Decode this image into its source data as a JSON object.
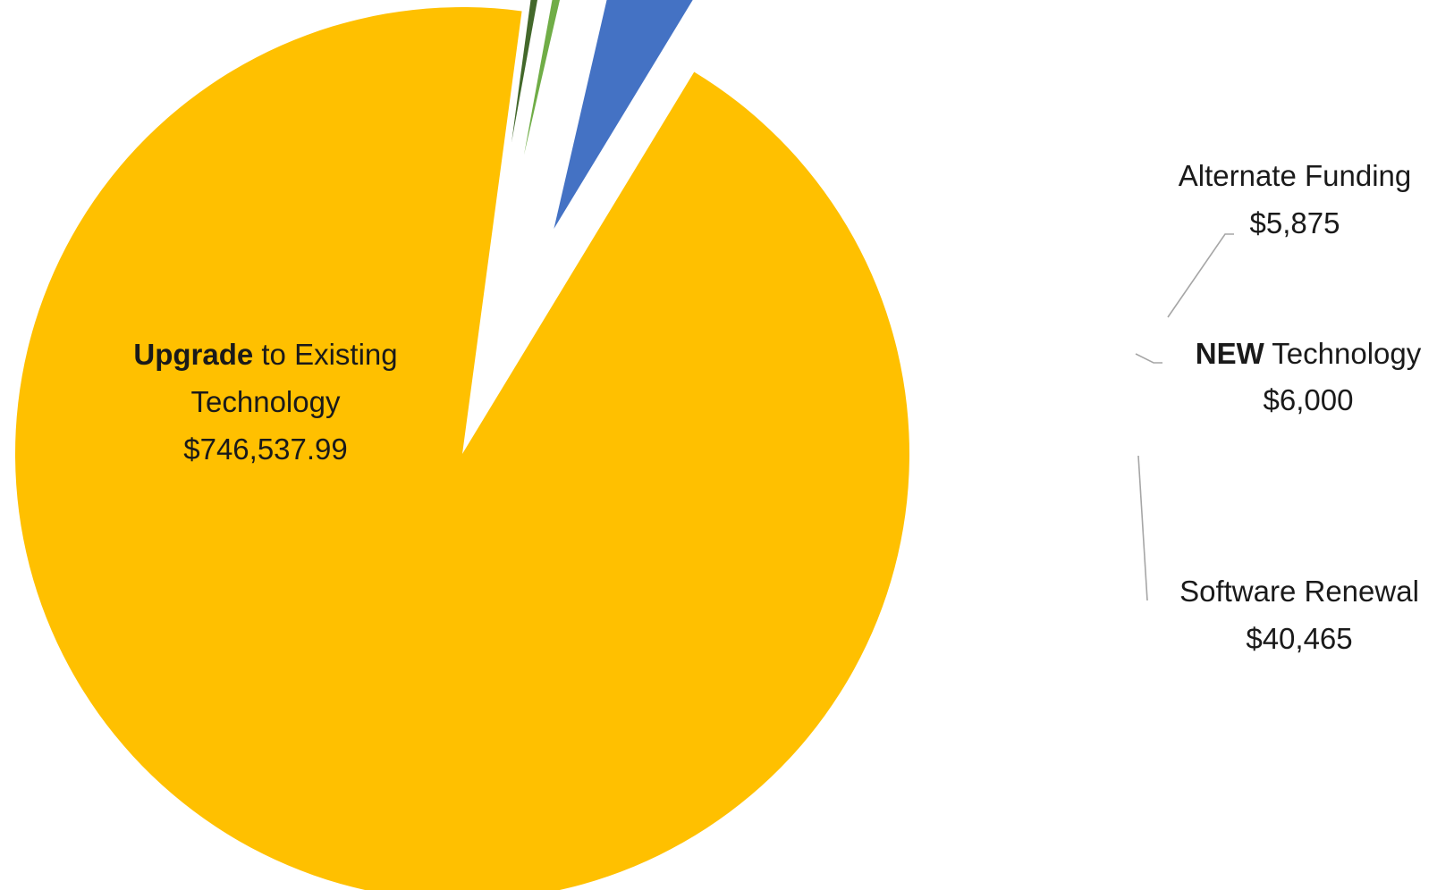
{
  "chart_data": {
    "type": "pie",
    "slices": [
      {
        "key": "software",
        "name": "Software Renewal",
        "value": 40465,
        "value_label": "$40,465",
        "color": "#4472C4"
      },
      {
        "key": "upgrade",
        "name_bold": "Upgrade",
        "name_rest": " to Existing",
        "name_line2": "Technology",
        "value": 746537.99,
        "value_label": "$746,537.99",
        "color": "#FFC000"
      },
      {
        "key": "alternate",
        "name": "Alternate Funding",
        "value": 5875,
        "value_label": "$5,875",
        "color": "#43682B"
      },
      {
        "key": "new",
        "name_bold": "NEW",
        "name_rest": " Technology",
        "value": 6000,
        "value_label": "$6,000",
        "color": "#70AD47"
      }
    ],
    "legend": "none",
    "data_labels": "category and value"
  }
}
